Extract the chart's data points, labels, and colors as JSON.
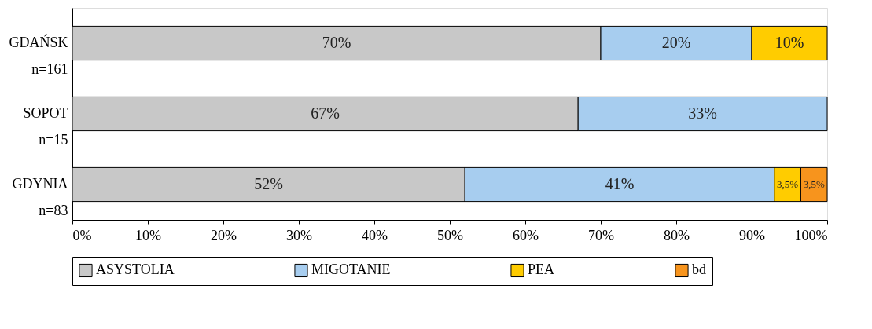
{
  "chart_data": {
    "type": "bar",
    "orientation": "horizontal",
    "stacked": true,
    "categories": [
      "GDAŃSK\nn=161",
      "SOPOT\nn=15",
      "GDYNIA\nn=83"
    ],
    "series": [
      {
        "name": "ASYSTOLIA",
        "color": "#c8c8c8",
        "values": [
          70,
          67,
          52
        ],
        "value_labels": [
          "70%",
          "67%",
          "52%"
        ]
      },
      {
        "name": "MIGOTANIE",
        "color": "#a7cdef",
        "values": [
          20,
          33,
          41
        ],
        "value_labels": [
          "20%",
          "33%",
          "41%"
        ]
      },
      {
        "name": "PEA",
        "color": "#ffcc00",
        "values": [
          10,
          0,
          3.5
        ],
        "value_labels": [
          "10%",
          null,
          "3,5%"
        ]
      },
      {
        "name": "bd",
        "color": "#f7941d",
        "values": [
          0,
          0,
          3.5
        ],
        "value_labels": [
          null,
          null,
          "3,5%"
        ]
      }
    ],
    "xlim": [
      0,
      100
    ],
    "xticks": [
      {
        "value": 0,
        "label": "0%"
      },
      {
        "value": 10,
        "label": "10%"
      },
      {
        "value": 20,
        "label": "20%"
      },
      {
        "value": 30,
        "label": "30%"
      },
      {
        "value": 40,
        "label": "40%"
      },
      {
        "value": 50,
        "label": "50%"
      },
      {
        "value": 60,
        "label": "60%"
      },
      {
        "value": 70,
        "label": "70%"
      },
      {
        "value": 80,
        "label": "80%"
      },
      {
        "value": 90,
        "label": "90%"
      },
      {
        "value": 100,
        "label": "100%"
      }
    ],
    "grid": false,
    "legend": "bottom"
  }
}
